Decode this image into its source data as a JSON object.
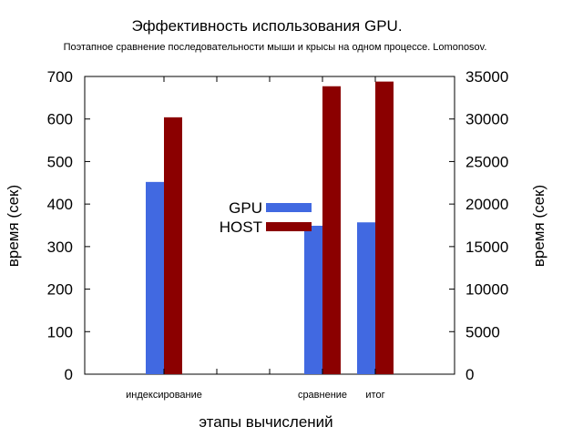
{
  "chart_data": {
    "type": "bar",
    "title": "Эффективность использования GPU.",
    "subtitle": "Поэтапное сравнение последовательности мыши и крысы на одном процессе. Lomonosov.",
    "xlabel": "этапы вычислений",
    "ylabel": "время (сек)",
    "y2label": "время (сек)",
    "categories": [
      "индексирование",
      "",
      "",
      "сравнение",
      "итог"
    ],
    "ylim": [
      0,
      700
    ],
    "y2lim": [
      0,
      35000
    ],
    "yticks": [
      "0",
      "100",
      "200",
      "300",
      "400",
      "500",
      "600",
      "700"
    ],
    "y2ticks": [
      "0",
      "5000",
      "10000",
      "15000",
      "20000",
      "25000",
      "30000",
      "35000"
    ],
    "series": [
      {
        "name": "GPU",
        "color": "#4169e1",
        "values": [
          452,
          null,
          null,
          349,
          357
        ]
      },
      {
        "name": "HOST",
        "color": "#8b0000",
        "values": [
          604,
          null,
          null,
          677,
          688
        ]
      }
    ],
    "grid": false,
    "legend": "center"
  }
}
